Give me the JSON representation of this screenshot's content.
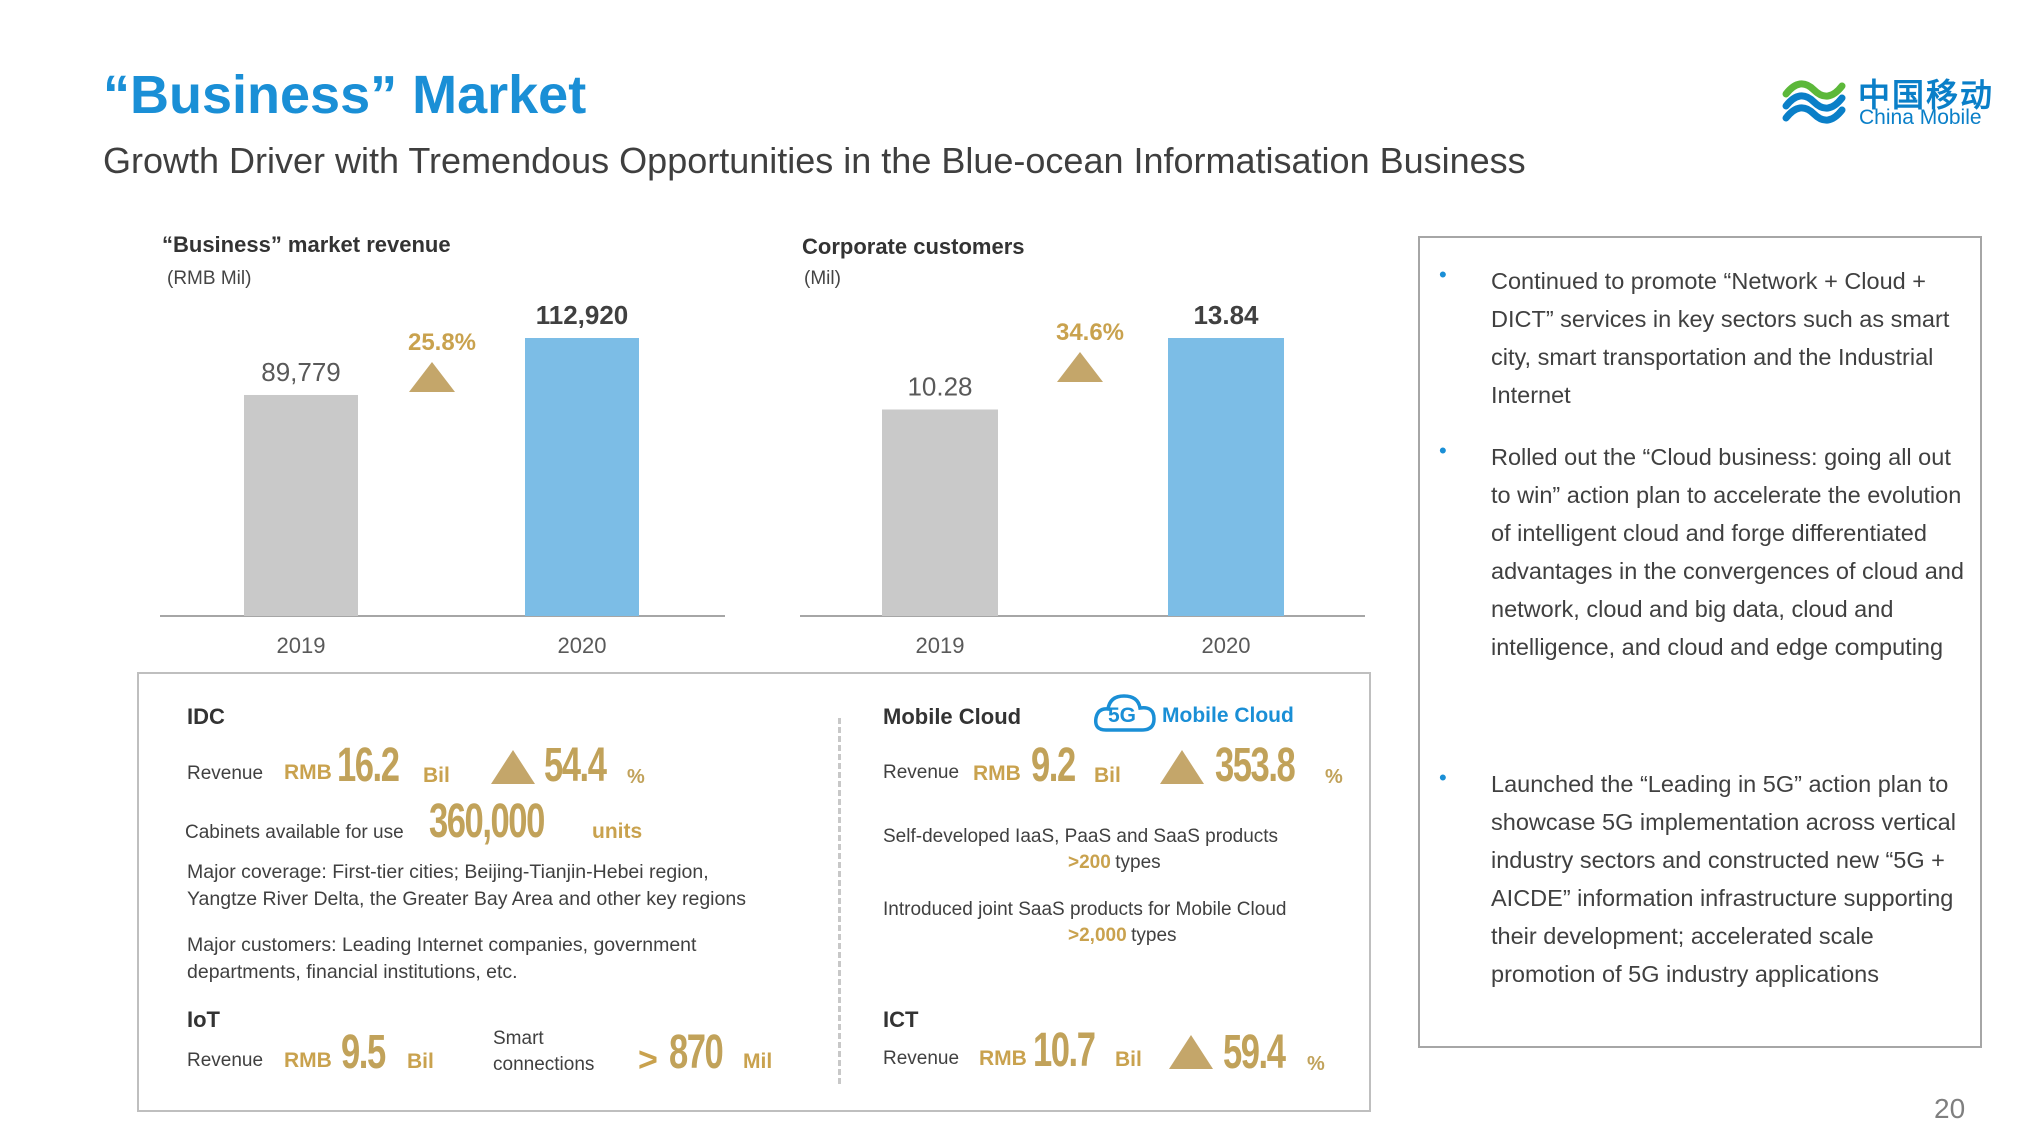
{
  "header": {
    "title": "“Business” Market",
    "subtitle": "Growth Driver with Tremendous Opportunities in the Blue-ocean Informatisation Business"
  },
  "logo": {
    "chinese": "中国移动",
    "english": "China Mobile"
  },
  "chart_data": [
    {
      "type": "bar",
      "title": "“Business” market revenue",
      "unit": "(RMB Mil)",
      "categories": [
        "2019",
        "2020"
      ],
      "values": [
        89779,
        112920
      ],
      "value_labels": [
        "89,779",
        "112,920"
      ],
      "growth_label": "25.8%",
      "colors": [
        "#c9c9c9",
        "#7cbde6"
      ],
      "grid": false
    },
    {
      "type": "bar",
      "title": "Corporate customers",
      "unit": "(Mil)",
      "categories": [
        "2019",
        "2020"
      ],
      "values": [
        10.28,
        13.84
      ],
      "value_labels": [
        "10.28",
        "13.84"
      ],
      "growth_label": "34.6%",
      "colors": [
        "#c9c9c9",
        "#7cbde6"
      ],
      "grid": false
    }
  ],
  "idc": {
    "title": "IDC",
    "revenue_label": "Revenue",
    "currency": "RMB",
    "revenue_value": "16.2",
    "revenue_unit": "Bil",
    "growth_value": "54.4",
    "growth_unit": "%",
    "cabinets_label": "Cabinets available for use",
    "cabinets_value": "360,000",
    "cabinets_unit": "units",
    "coverage_line1": "Major coverage: First-tier cities; Beijing-Tianjin-Hebei region,",
    "coverage_line2": "Yangtze River Delta, the Greater Bay Area and other key regions",
    "customers_line1": "Major customers: Leading Internet companies, government",
    "customers_line2": "departments, financial institutions, etc."
  },
  "iot": {
    "title": "IoT",
    "revenue_label": "Revenue",
    "currency": "RMB",
    "revenue_value": "9.5",
    "revenue_unit": "Bil",
    "connections_label_line1": "Smart",
    "connections_label_line2": "connections",
    "connections_prefix": ">",
    "connections_value": "870",
    "connections_unit": "Mil"
  },
  "mobile_cloud": {
    "title": "Mobile Cloud",
    "logo_text": "Mobile Cloud",
    "logo_badge": "5G",
    "revenue_label": "Revenue",
    "currency": "RMB",
    "revenue_value": "9.2",
    "revenue_unit": "Bil",
    "growth_value": "353.8",
    "growth_unit": "%",
    "products_line": "Self-developed IaaS, PaaS and SaaS products",
    "products_value": ">200",
    "products_unit": "types",
    "saas_line": "Introduced joint SaaS products for Mobile Cloud",
    "saas_value": ">2,000",
    "saas_unit": "types"
  },
  "ict": {
    "title": "ICT",
    "revenue_label": "Revenue",
    "currency": "RMB",
    "revenue_value": "10.7",
    "revenue_unit": "Bil",
    "growth_value": "59.4",
    "growth_unit": "%"
  },
  "bullets": [
    "Continued to promote “Network + Cloud + DICT” services in key sectors such as smart city, smart transportation and the Industrial Internet",
    "Rolled out the “Cloud business: going all out to win” action plan to accelerate the evolution of intelligent cloud and forge differentiated advantages in the convergences of cloud and network, cloud and big data, cloud and intelligence, and cloud and edge computing",
    "Launched the “Leading in 5G” action plan to showcase 5G implementation across vertical industry sectors and constructed new “5G + AICDE” information infrastructure supporting their development; accelerated scale promotion of 5G industry applications"
  ],
  "page_number": "20"
}
